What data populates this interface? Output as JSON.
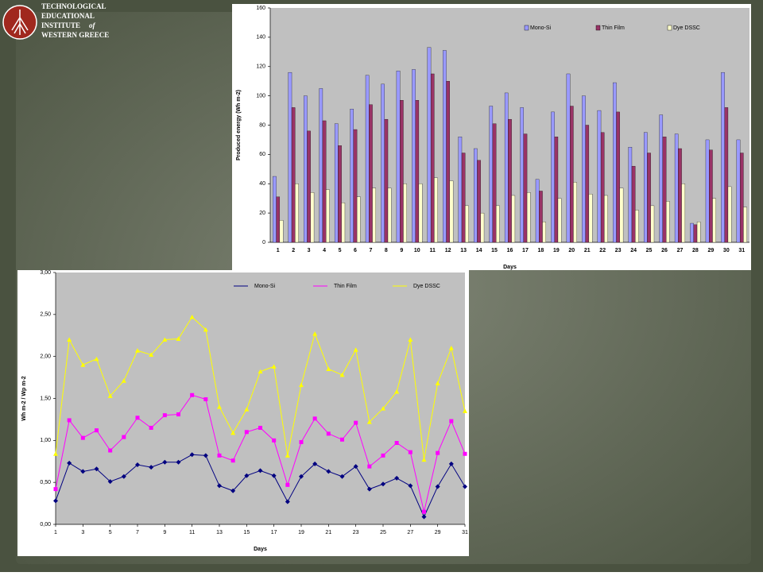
{
  "header": {
    "lines": [
      "TECHNOLOGICAL",
      "EDUCATIONAL",
      "INSTITUTE",
      "of",
      "WESTERN GREECE"
    ]
  },
  "chart_data": [
    {
      "type": "bar",
      "x_label": "Days",
      "y_label": "Produced energy (Wh m-2)",
      "categories": [
        "1",
        "2",
        "3",
        "4",
        "5",
        "6",
        "7",
        "8",
        "9",
        "10",
        "11",
        "12",
        "13",
        "14",
        "15",
        "16",
        "17",
        "18",
        "19",
        "20",
        "21",
        "22",
        "23",
        "24",
        "25",
        "26",
        "27",
        "28",
        "29",
        "30",
        "31"
      ],
      "series": [
        {
          "name": "Mono-Si",
          "color": "#9999ff",
          "values": [
            45,
            116,
            100,
            105,
            81,
            91,
            114,
            108,
            117,
            118,
            133,
            131,
            72,
            64,
            93,
            102,
            92,
            43,
            89,
            115,
            100,
            90,
            109,
            65,
            75,
            87,
            74,
            13,
            70,
            116,
            70
          ]
        },
        {
          "name": "Thin Film",
          "color": "#993366",
          "values": [
            31,
            92,
            76,
            83,
            66,
            77,
            94,
            84,
            97,
            97,
            115,
            110,
            61,
            56,
            81,
            84,
            74,
            35,
            72,
            93,
            80,
            75,
            89,
            52,
            61,
            72,
            64,
            12,
            63,
            92,
            61
          ]
        },
        {
          "name": "Dye DSSC",
          "color": "#ffffcc",
          "values": [
            15,
            40,
            34,
            36,
            27,
            31,
            37,
            37,
            40,
            40,
            44,
            42,
            25,
            20,
            25,
            32,
            34,
            14,
            30,
            41,
            33,
            32,
            37,
            22,
            25,
            28,
            40,
            14,
            30,
            38,
            24
          ]
        }
      ],
      "ylim": [
        0,
        160
      ],
      "yticks": [
        0,
        20,
        40,
        60,
        80,
        100,
        120,
        140,
        160
      ],
      "legend": "top-right",
      "grid": false
    },
    {
      "type": "line",
      "x_label": "Days",
      "y_label": "Wh m-2 / Wp m-2",
      "x": [
        1,
        2,
        3,
        4,
        5,
        6,
        7,
        8,
        9,
        10,
        11,
        12,
        13,
        14,
        15,
        16,
        17,
        18,
        19,
        20,
        21,
        22,
        23,
        24,
        25,
        26,
        27,
        28,
        29,
        30,
        31
      ],
      "xlim": [
        1,
        31
      ],
      "xticks": [
        1,
        3,
        5,
        7,
        9,
        11,
        13,
        15,
        17,
        19,
        21,
        23,
        25,
        27,
        29,
        31
      ],
      "series": [
        {
          "name": "Mono-Si",
          "color": "#000080",
          "marker": "diamond",
          "values": [
            0.28,
            0.73,
            0.63,
            0.66,
            0.51,
            0.57,
            0.71,
            0.68,
            0.74,
            0.74,
            0.83,
            0.82,
            0.46,
            0.4,
            0.58,
            0.64,
            0.58,
            0.27,
            0.57,
            0.72,
            0.63,
            0.57,
            0.69,
            0.42,
            0.48,
            0.55,
            0.46,
            0.09,
            0.45,
            0.72,
            0.45
          ]
        },
        {
          "name": "Thin Film",
          "color": "#ff00ff",
          "marker": "square",
          "values": [
            0.42,
            1.24,
            1.03,
            1.12,
            0.88,
            1.04,
            1.27,
            1.15,
            1.3,
            1.31,
            1.54,
            1.49,
            0.82,
            0.76,
            1.1,
            1.15,
            1.0,
            0.47,
            0.98,
            1.26,
            1.08,
            1.01,
            1.21,
            0.69,
            0.82,
            0.97,
            0.86,
            0.15,
            0.85,
            1.23,
            0.84
          ]
        },
        {
          "name": "Dye DSSC",
          "color": "#ffff00",
          "marker": "triangle",
          "values": [
            0.84,
            2.2,
            1.9,
            1.97,
            1.53,
            1.71,
            2.07,
            2.02,
            2.2,
            2.21,
            2.47,
            2.32,
            1.4,
            1.09,
            1.37,
            1.82,
            1.88,
            0.82,
            1.66,
            2.27,
            1.85,
            1.78,
            2.08,
            1.22,
            1.38,
            1.58,
            2.2,
            0.77,
            1.68,
            2.1,
            1.35
          ]
        }
      ],
      "ylim": [
        0,
        3
      ],
      "yticks": [
        {
          "value": 0,
          "label": "0,00"
        },
        {
          "value": 0.5,
          "label": "0,50"
        },
        {
          "value": 1,
          "label": "1,00"
        },
        {
          "value": 1.5,
          "label": "1,50"
        },
        {
          "value": 2,
          "label": "2,00"
        },
        {
          "value": 2.5,
          "label": "2,50"
        },
        {
          "value": 3,
          "label": "3,00"
        }
      ],
      "legend": "top",
      "grid": false
    }
  ]
}
